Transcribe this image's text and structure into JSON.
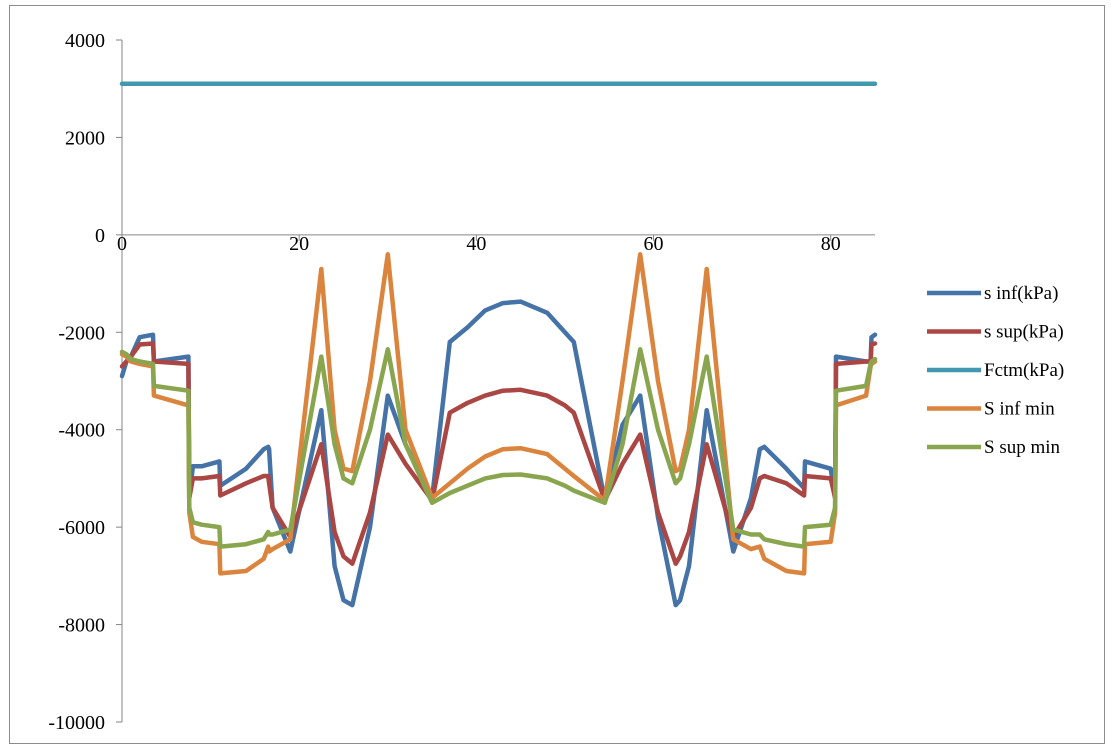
{
  "chart_data": {
    "type": "line",
    "title": "",
    "xlabel": "",
    "ylabel": "",
    "xlim": [
      0,
      85
    ],
    "ylim": [
      -10000,
      4000
    ],
    "xticks": [
      0,
      20,
      40,
      60,
      80
    ],
    "xtick_labels": [
      "0",
      "20",
      "40",
      "60",
      "80"
    ],
    "yticks": [
      4000,
      2000,
      0,
      -2000,
      -4000,
      -6000,
      -8000,
      -10000
    ],
    "ytick_labels": [
      "4000",
      "2000",
      "0",
      "-2000",
      "-4000",
      "-6000",
      "-8000",
      "-10000"
    ],
    "grid": false,
    "legend_position": "right",
    "series": [
      {
        "name": "s inf(kPa)",
        "color": "#4572A7",
        "points": [
          [
            0,
            -2900
          ],
          [
            0.5,
            -2600
          ],
          [
            1,
            -2500
          ],
          [
            2,
            -2100
          ],
          [
            3.5,
            -2050
          ],
          [
            3.6,
            -2600
          ],
          [
            7.5,
            -2500
          ],
          [
            7.6,
            -5400
          ],
          [
            8,
            -4750
          ],
          [
            9,
            -4750
          ],
          [
            11,
            -4650
          ],
          [
            11.1,
            -5150
          ],
          [
            14,
            -4800
          ],
          [
            16,
            -4400
          ],
          [
            16.5,
            -4350
          ],
          [
            16.6,
            -4400
          ],
          [
            17,
            -5600
          ],
          [
            19,
            -6500
          ],
          [
            22.5,
            -3600
          ],
          [
            24,
            -6800
          ],
          [
            25,
            -7500
          ],
          [
            26,
            -7600
          ],
          [
            28,
            -6000
          ],
          [
            30,
            -3300
          ],
          [
            32,
            -4300
          ],
          [
            35,
            -5400
          ],
          [
            37,
            -2200
          ],
          [
            39,
            -1900
          ],
          [
            41,
            -1550
          ],
          [
            43,
            -1400
          ],
          [
            45,
            -1370
          ],
          [
            48,
            -1600
          ],
          [
            50,
            -2000
          ],
          [
            51,
            -2200
          ],
          [
            54.5,
            -5450
          ],
          [
            56.5,
            -3900
          ],
          [
            58.5,
            -3300
          ],
          [
            60.5,
            -5800
          ],
          [
            62.5,
            -7600
          ],
          [
            63,
            -7500
          ],
          [
            64,
            -6800
          ],
          [
            66,
            -3600
          ],
          [
            69,
            -6500
          ],
          [
            71,
            -5400
          ],
          [
            72,
            -4400
          ],
          [
            72.5,
            -4350
          ],
          [
            75,
            -4800
          ],
          [
            77,
            -5200
          ],
          [
            77.1,
            -4650
          ],
          [
            80,
            -4800
          ],
          [
            80.5,
            -5400
          ],
          [
            80.6,
            -2500
          ],
          [
            84,
            -2600
          ],
          [
            84.5,
            -2600
          ],
          [
            84.6,
            -2100
          ],
          [
            85,
            -2050
          ]
        ]
      },
      {
        "name": "s sup(kPa)",
        "color": "#AA4643",
        "points": [
          [
            0,
            -2700
          ],
          [
            0.5,
            -2600
          ],
          [
            1,
            -2500
          ],
          [
            2,
            -2250
          ],
          [
            3.5,
            -2230
          ],
          [
            3.6,
            -2600
          ],
          [
            7.5,
            -2650
          ],
          [
            7.6,
            -5400
          ],
          [
            8,
            -5000
          ],
          [
            9,
            -5000
          ],
          [
            11,
            -4950
          ],
          [
            11.1,
            -5350
          ],
          [
            14,
            -5100
          ],
          [
            16,
            -4950
          ],
          [
            16.5,
            -4950
          ],
          [
            16.6,
            -5100
          ],
          [
            17,
            -5600
          ],
          [
            19,
            -6200
          ],
          [
            22.5,
            -4300
          ],
          [
            24,
            -6100
          ],
          [
            25,
            -6600
          ],
          [
            26,
            -6750
          ],
          [
            28,
            -5700
          ],
          [
            30,
            -4100
          ],
          [
            32,
            -4700
          ],
          [
            35,
            -5450
          ],
          [
            37,
            -3650
          ],
          [
            39,
            -3450
          ],
          [
            41,
            -3300
          ],
          [
            43,
            -3200
          ],
          [
            45,
            -3180
          ],
          [
            48,
            -3300
          ],
          [
            50,
            -3500
          ],
          [
            51,
            -3650
          ],
          [
            54.5,
            -5450
          ],
          [
            56.5,
            -4700
          ],
          [
            58.5,
            -4100
          ],
          [
            60.5,
            -5700
          ],
          [
            62.5,
            -6750
          ],
          [
            63,
            -6600
          ],
          [
            64,
            -6100
          ],
          [
            66,
            -4300
          ],
          [
            69,
            -6200
          ],
          [
            71,
            -5600
          ],
          [
            72,
            -5000
          ],
          [
            72.5,
            -4950
          ],
          [
            75,
            -5100
          ],
          [
            77,
            -5350
          ],
          [
            77.1,
            -4950
          ],
          [
            80,
            -5000
          ],
          [
            80.5,
            -5400
          ],
          [
            80.6,
            -2650
          ],
          [
            84,
            -2600
          ],
          [
            84.5,
            -2600
          ],
          [
            84.6,
            -2250
          ],
          [
            85,
            -2230
          ]
        ]
      },
      {
        "name": "Fctm(kPa)",
        "color": "#4198AF",
        "points": [
          [
            0,
            3100
          ],
          [
            85,
            3100
          ]
        ]
      },
      {
        "name": "S inf min",
        "color": "#DB843D",
        "points": [
          [
            0,
            -2450
          ],
          [
            0.5,
            -2500
          ],
          [
            1,
            -2600
          ],
          [
            2,
            -2650
          ],
          [
            3.5,
            -2700
          ],
          [
            3.6,
            -3300
          ],
          [
            7.5,
            -3500
          ],
          [
            7.6,
            -5700
          ],
          [
            8,
            -6200
          ],
          [
            9,
            -6300
          ],
          [
            11,
            -6350
          ],
          [
            11.1,
            -6950
          ],
          [
            14,
            -6900
          ],
          [
            16,
            -6650
          ],
          [
            16.5,
            -6400
          ],
          [
            16.6,
            -6500
          ],
          [
            17,
            -6450
          ],
          [
            19,
            -6250
          ],
          [
            22.5,
            -700
          ],
          [
            24,
            -4000
          ],
          [
            25,
            -4800
          ],
          [
            26,
            -4850
          ],
          [
            28,
            -3000
          ],
          [
            30,
            -400
          ],
          [
            32,
            -4000
          ],
          [
            35,
            -5400
          ],
          [
            37,
            -5100
          ],
          [
            39,
            -4800
          ],
          [
            41,
            -4550
          ],
          [
            43,
            -4400
          ],
          [
            45,
            -4380
          ],
          [
            48,
            -4500
          ],
          [
            50,
            -4800
          ],
          [
            51,
            -4950
          ],
          [
            54.5,
            -5450
          ],
          [
            56.5,
            -3000
          ],
          [
            58.5,
            -400
          ],
          [
            60.5,
            -3000
          ],
          [
            62.5,
            -4850
          ],
          [
            63,
            -4800
          ],
          [
            64,
            -4000
          ],
          [
            66,
            -700
          ],
          [
            69,
            -6250
          ],
          [
            71,
            -6450
          ],
          [
            72,
            -6400
          ],
          [
            72.5,
            -6650
          ],
          [
            75,
            -6900
          ],
          [
            77,
            -6950
          ],
          [
            77.1,
            -6350
          ],
          [
            80,
            -6300
          ],
          [
            80.5,
            -5700
          ],
          [
            80.6,
            -3500
          ],
          [
            84,
            -3300
          ],
          [
            84.5,
            -2700
          ],
          [
            84.6,
            -2650
          ],
          [
            85,
            -2600
          ]
        ]
      },
      {
        "name": "S sup min",
        "color": "#89A54E",
        "points": [
          [
            0,
            -2400
          ],
          [
            0.5,
            -2450
          ],
          [
            1,
            -2550
          ],
          [
            2,
            -2600
          ],
          [
            3.5,
            -2650
          ],
          [
            3.6,
            -3100
          ],
          [
            7.5,
            -3200
          ],
          [
            7.6,
            -5600
          ],
          [
            8,
            -5900
          ],
          [
            9,
            -5950
          ],
          [
            11,
            -6000
          ],
          [
            11.1,
            -6400
          ],
          [
            14,
            -6350
          ],
          [
            16,
            -6250
          ],
          [
            16.5,
            -6100
          ],
          [
            16.6,
            -6150
          ],
          [
            17,
            -6150
          ],
          [
            19,
            -6050
          ],
          [
            22.5,
            -2500
          ],
          [
            24,
            -4300
          ],
          [
            25,
            -5000
          ],
          [
            26,
            -5100
          ],
          [
            28,
            -4000
          ],
          [
            30,
            -2350
          ],
          [
            32,
            -4300
          ],
          [
            35,
            -5500
          ],
          [
            37,
            -5300
          ],
          [
            39,
            -5150
          ],
          [
            41,
            -5000
          ],
          [
            43,
            -4930
          ],
          [
            45,
            -4920
          ],
          [
            48,
            -5000
          ],
          [
            50,
            -5150
          ],
          [
            51,
            -5250
          ],
          [
            54.5,
            -5500
          ],
          [
            56.5,
            -4300
          ],
          [
            58.5,
            -2350
          ],
          [
            60.5,
            -4000
          ],
          [
            62.5,
            -5100
          ],
          [
            63,
            -5000
          ],
          [
            64,
            -4300
          ],
          [
            66,
            -2500
          ],
          [
            69,
            -6050
          ],
          [
            71,
            -6150
          ],
          [
            72,
            -6150
          ],
          [
            72.5,
            -6250
          ],
          [
            75,
            -6350
          ],
          [
            77,
            -6400
          ],
          [
            77.1,
            -6000
          ],
          [
            80,
            -5950
          ],
          [
            80.5,
            -5600
          ],
          [
            80.6,
            -3200
          ],
          [
            84,
            -3100
          ],
          [
            84.5,
            -2650
          ],
          [
            84.6,
            -2600
          ],
          [
            85,
            -2550
          ]
        ]
      }
    ]
  }
}
